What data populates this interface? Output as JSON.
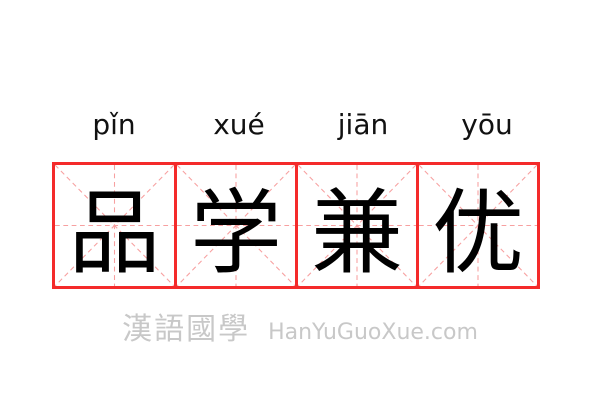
{
  "pinyin": [
    "pǐn",
    "xué",
    "jiān",
    "yōu"
  ],
  "characters": [
    "品",
    "学",
    "兼",
    "优"
  ],
  "watermark": {
    "cn": "漢語國學",
    "en": "HanYuGuoXue.com"
  },
  "colors": {
    "border": "#f42a2a",
    "guide": "#f7a0a0"
  }
}
